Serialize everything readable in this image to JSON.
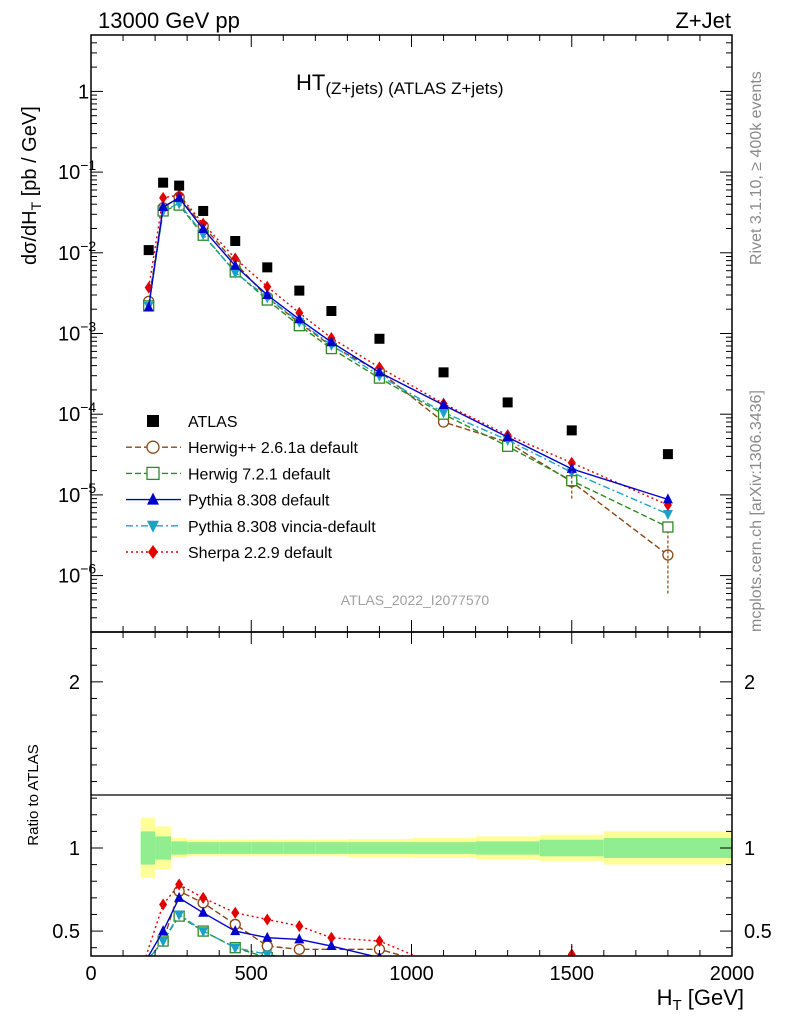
{
  "header": {
    "left": "13000 GeV pp",
    "right": "Z+Jet"
  },
  "side_labels": {
    "rivet": "Rivet 3.1.10, ≥ 400k events",
    "mcplots": "mcplots.cern.ch [arXiv:1306.3436]"
  },
  "analysis_id": "ATLAS_2022_I2077570",
  "colors": {
    "atlas": "#000000",
    "herwigpp": "#8b4513",
    "herwig7": "#2e8b22",
    "pythia": "#0000cc",
    "vincia": "#1ba1c8",
    "sherpa": "#e00000",
    "band_inner": "#90ee90",
    "band_outer": "#ffff99"
  },
  "chart_data": [
    {
      "type": "scatter",
      "title_main": "HT",
      "title_sub": "(Z+jets)",
      "title_rest": " (ATLAS Z+jets)",
      "ylabel": "dσ/dH",
      "ylabel_sub": "T",
      "ylabel_unit": " [pb / GeV]",
      "yscale": "log",
      "xlim": [
        0,
        2000
      ],
      "ylim": [
        2e-07,
        5
      ],
      "ytick_labels": [
        {
          "base": "10",
          "exp": "−6"
        },
        {
          "base": "10",
          "exp": "−5"
        },
        {
          "base": "10",
          "exp": "−4"
        },
        {
          "base": "10",
          "exp": "−3"
        },
        {
          "base": "10",
          "exp": "−2"
        },
        {
          "base": "10",
          "exp": "−1"
        },
        {
          "base": "1",
          "exp": ""
        }
      ],
      "ytick_values": [
        1e-06,
        1e-05,
        0.0001,
        0.001,
        0.01,
        0.1,
        1
      ],
      "x": [
        180,
        225,
        275,
        350,
        450,
        550,
        650,
        750,
        900,
        1100,
        1300,
        1500,
        1800
      ],
      "series": [
        {
          "key": "atlas",
          "name": "ATLAS",
          "marker": "square",
          "line": "none",
          "values": [
            0.0108,
            0.074,
            0.068,
            0.033,
            0.014,
            0.0066,
            0.0034,
            0.0019,
            0.00086,
            0.00033,
            0.00014,
            6.3e-05,
            3.2e-05
          ]
        },
        {
          "key": "herwigpp",
          "name": "Herwig++ 2.6.1a default",
          "marker": "circle-open",
          "line": "dashed",
          "values": [
            0.0025,
            0.036,
            0.049,
            0.0215,
            0.0075,
            0.0028,
            0.00135,
            0.0007,
            0.00034,
            8e-05,
            4.5e-05,
            1.45e-05,
            1.8e-06
          ]
        },
        {
          "key": "herwig7",
          "name": "Herwig 7.2.1 default",
          "marker": "square-open",
          "line": "dashed",
          "values": [
            0.0022,
            0.033,
            0.039,
            0.0165,
            0.0058,
            0.0026,
            0.00125,
            0.00065,
            0.00028,
            0.0001,
            4e-05,
            1.5e-05,
            4e-06
          ]
        },
        {
          "key": "pythia",
          "name": "Pythia 8.308 default",
          "marker": "triangle-up",
          "line": "solid",
          "values": [
            0.0021,
            0.037,
            0.048,
            0.0197,
            0.0069,
            0.003,
            0.0015,
            0.00078,
            0.00033,
            0.00013,
            5.2e-05,
            2.1e-05,
            8.8e-06
          ]
        },
        {
          "key": "vincia",
          "name": "Pythia 8.308 vincia-default",
          "marker": "triangle-down",
          "line": "dashdot",
          "values": [
            0.0022,
            0.033,
            0.041,
            0.017,
            0.0057,
            0.0028,
            0.0014,
            0.00072,
            0.0003,
            0.000105,
            4.8e-05,
            1.9e-05,
            5.8e-06
          ]
        },
        {
          "key": "sherpa",
          "name": "Sherpa 2.2.9 default",
          "marker": "diamond",
          "line": "dotted",
          "values": [
            0.0037,
            0.048,
            0.052,
            0.023,
            0.0085,
            0.0038,
            0.0018,
            0.00088,
            0.00038,
            0.000135,
            5.5e-05,
            2.5e-05,
            7.5e-06
          ]
        }
      ]
    },
    {
      "type": "scatter",
      "ylabel": "Ratio to ATLAS",
      "xlabel": "H",
      "xlabel_sub": "T",
      "xlabel_unit": " [GeV]",
      "ylim": [
        0.35,
        2.3
      ],
      "xlim": [
        0,
        2000
      ],
      "xtick_labels": [
        "0",
        "500",
        "1000",
        "1500",
        "2000"
      ],
      "xtick_values": [
        0,
        500,
        1000,
        1500,
        2000
      ],
      "ytick_labels": [
        "0.5",
        "1",
        "2"
      ],
      "ytick_values": [
        0.5,
        1,
        2
      ],
      "band_edges": [
        155,
        200,
        250,
        300,
        400,
        500,
        600,
        700,
        800,
        1000,
        1200,
        1400,
        1600,
        2000
      ],
      "band_inner_halfwidth": [
        0.1,
        0.07,
        0.04,
        0.035,
        0.035,
        0.035,
        0.035,
        0.035,
        0.035,
        0.035,
        0.04,
        0.05,
        0.06
      ],
      "band_outer_halfwidth": [
        0.18,
        0.13,
        0.06,
        0.05,
        0.05,
        0.05,
        0.05,
        0.05,
        0.055,
        0.06,
        0.07,
        0.08,
        0.1
      ],
      "series": [
        {
          "key": "herwigpp",
          "x": [
            225,
            275,
            350,
            450,
            550,
            650,
            900
          ],
          "values": [
            0.44,
            0.74,
            0.67,
            0.54,
            0.41,
            0.39,
            0.39
          ]
        },
        {
          "key": "herwig7",
          "x": [
            225,
            275,
            350,
            450,
            550
          ],
          "values": [
            0.44,
            0.59,
            0.5,
            0.4,
            0.34
          ]
        },
        {
          "key": "pythia",
          "x": [
            225,
            275,
            350,
            450,
            550,
            650,
            750,
            900
          ],
          "values": [
            0.5,
            0.7,
            0.61,
            0.5,
            0.46,
            0.45,
            0.41,
            0.34
          ]
        },
        {
          "key": "vincia",
          "x": [
            225,
            275,
            350,
            450,
            550
          ],
          "values": [
            0.44,
            0.6,
            0.5,
            0.4,
            0.36
          ]
        },
        {
          "key": "sherpa",
          "x": [
            225,
            275,
            350,
            450,
            550,
            650,
            750,
            900
          ],
          "values": [
            0.66,
            0.78,
            0.7,
            0.61,
            0.57,
            0.53,
            0.46,
            0.44
          ]
        }
      ]
    }
  ]
}
